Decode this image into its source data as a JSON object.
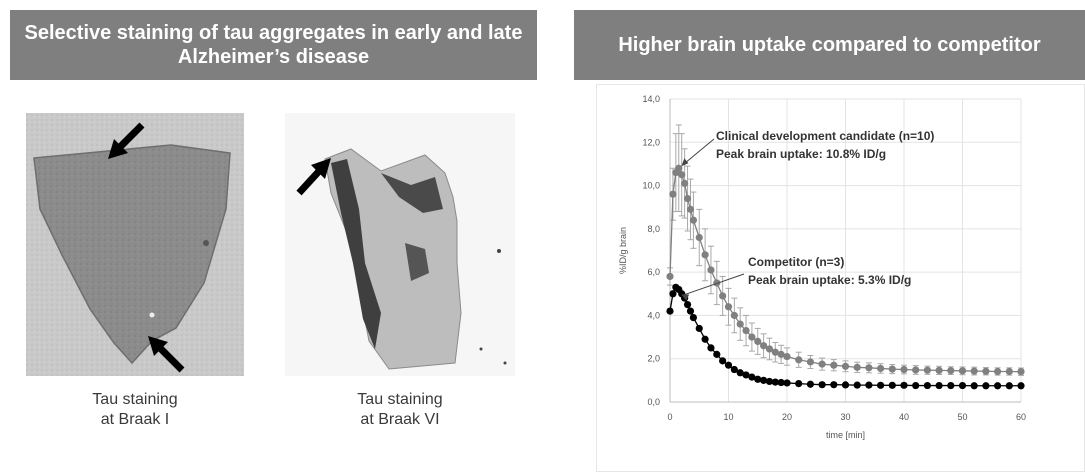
{
  "left_panel": {
    "title": "Selective staining of tau aggregates in early and late Alzheimer’s disease",
    "images": [
      {
        "caption_line1": "Tau staining",
        "caption_line2": "at Braak I"
      },
      {
        "caption_line1": "Tau staining",
        "caption_line2": "at Braak VI"
      }
    ]
  },
  "right_panel": {
    "title": "Higher brain uptake compared to competitor"
  },
  "colors": {
    "banner": "#7f7f7f",
    "candidate_series": "#808080",
    "competitor_series": "#000000"
  },
  "chart_data": {
    "type": "line",
    "xlabel": "time [min]",
    "ylabel": "%ID/g brain",
    "xlim": [
      0,
      60
    ],
    "ylim": [
      0,
      14
    ],
    "x_ticks": [
      0,
      10,
      20,
      30,
      40,
      50,
      60
    ],
    "y_ticks": [
      "0,0",
      "2,0",
      "4,0",
      "6,0",
      "8,0",
      "10,0",
      "12,0",
      "14,0"
    ],
    "grid": true,
    "series": [
      {
        "key": "candidate",
        "color": "#808080",
        "error_bars": true,
        "x": [
          0,
          0.5,
          1,
          1.5,
          2,
          2.5,
          3,
          3.5,
          4,
          5,
          6,
          7,
          8,
          9,
          10,
          11,
          12,
          13,
          14,
          15,
          16,
          17,
          18,
          19,
          20,
          22,
          24,
          26,
          28,
          30,
          32,
          34,
          36,
          38,
          40,
          42,
          44,
          46,
          48,
          50,
          52,
          54,
          56,
          58,
          60
        ],
        "y": [
          5.8,
          9.6,
          10.6,
          10.8,
          10.5,
          10.1,
          9.4,
          8.9,
          8.4,
          7.6,
          6.8,
          6.1,
          5.5,
          4.9,
          4.4,
          4.0,
          3.6,
          3.3,
          3.0,
          2.8,
          2.6,
          2.45,
          2.3,
          2.2,
          2.1,
          1.95,
          1.85,
          1.75,
          1.7,
          1.65,
          1.6,
          1.58,
          1.55,
          1.52,
          1.5,
          1.48,
          1.47,
          1.46,
          1.45,
          1.44,
          1.43,
          1.42,
          1.41,
          1.41,
          1.4
        ],
        "err": [
          0.4,
          1.2,
          1.8,
          2.0,
          1.9,
          1.6,
          1.5,
          1.4,
          1.3,
          1.3,
          1.2,
          1.1,
          1.0,
          0.9,
          0.85,
          0.8,
          0.75,
          0.7,
          0.65,
          0.6,
          0.55,
          0.5,
          0.45,
          0.42,
          0.4,
          0.35,
          0.3,
          0.28,
          0.26,
          0.25,
          0.24,
          0.23,
          0.22,
          0.21,
          0.2,
          0.2,
          0.19,
          0.19,
          0.18,
          0.18,
          0.18,
          0.17,
          0.17,
          0.17,
          0.17
        ]
      },
      {
        "key": "competitor",
        "color": "#000000",
        "error_bars": false,
        "x": [
          0,
          0.5,
          1,
          1.5,
          2,
          2.5,
          3,
          3.5,
          4,
          5,
          6,
          7,
          8,
          9,
          10,
          11,
          12,
          13,
          14,
          15,
          16,
          17,
          18,
          19,
          20,
          22,
          24,
          26,
          28,
          30,
          32,
          34,
          36,
          38,
          40,
          42,
          44,
          46,
          48,
          50,
          52,
          54,
          56,
          58,
          60
        ],
        "y": [
          4.2,
          5.0,
          5.3,
          5.2,
          5.0,
          4.8,
          4.5,
          4.2,
          3.9,
          3.4,
          2.9,
          2.5,
          2.2,
          1.9,
          1.7,
          1.5,
          1.35,
          1.25,
          1.15,
          1.05,
          1.0,
          0.95,
          0.92,
          0.9,
          0.88,
          0.85,
          0.82,
          0.8,
          0.8,
          0.79,
          0.78,
          0.78,
          0.77,
          0.77,
          0.77,
          0.76,
          0.76,
          0.76,
          0.76,
          0.76,
          0.75,
          0.75,
          0.75,
          0.75,
          0.75
        ]
      }
    ],
    "annotations": [
      {
        "key": "candidate",
        "line1": "Clinical development candidate (n=10)",
        "line2": "Peak brain uptake: 10.8% ID/g"
      },
      {
        "key": "competitor",
        "line1": "Competitor (n=3)",
        "line2": "Peak brain uptake: 5.3% ID/g"
      }
    ]
  }
}
